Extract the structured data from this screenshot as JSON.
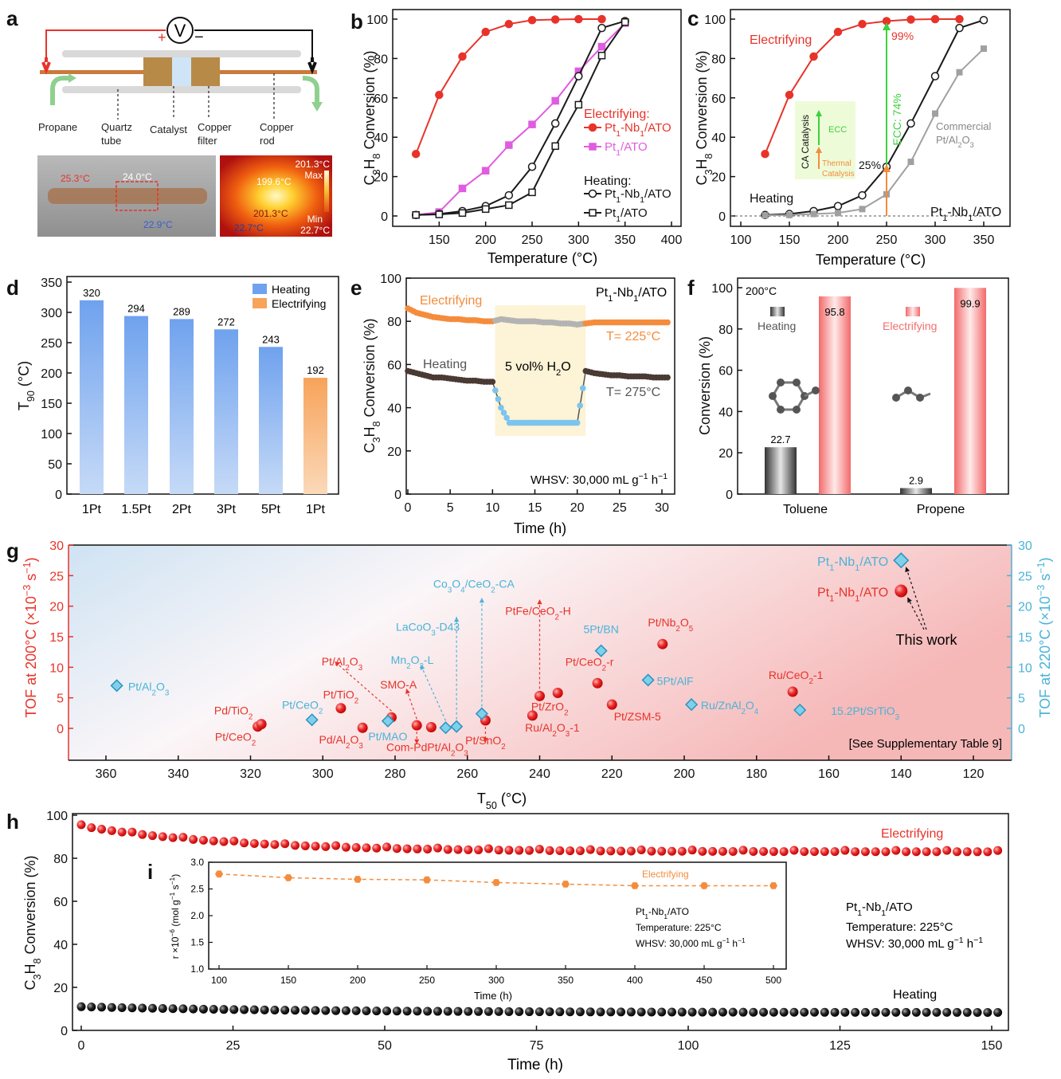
{
  "panel_labels": {
    "a": "a",
    "b": "b",
    "c": "c",
    "d": "d",
    "e": "e",
    "f": "f",
    "g": "g",
    "h": "h",
    "i": "i"
  },
  "colors": {
    "red": "#e8332a",
    "pink": "#e05ce0",
    "black": "#1a1a1a",
    "blue": "#4ab3d8",
    "orange": "#f58c3c",
    "grey": "#a0a0a0",
    "green": "#3cd23c"
  },
  "panel_a": {
    "voltmeter": "V",
    "plus": "+",
    "minus": "−",
    "labels": {
      "propane": "Propane",
      "quartz": "Quartz",
      "quartz2": "tube",
      "catalyst": "Catalyst",
      "copper_filter": "Copper",
      "copper_filter2": "filter",
      "copper_rod": "Copper",
      "copper_rod2": "rod"
    },
    "photo": {
      "t1": "25.3°C",
      "t2": "24.0°C",
      "t3": "22.9°C"
    },
    "thermal": {
      "max_val": "201.3°C",
      "max": "Max",
      "center": "199.6°C",
      "center2": "201.3°C",
      "min": "Min",
      "min_val": "22.7°C",
      "cold": "22.7°C"
    }
  },
  "chart_data": [
    {
      "id": "b",
      "type": "line",
      "xlabel": "Temperature (°C)",
      "ylabel": "C3H8 Conversion (%)",
      "xlim": [
        100,
        400
      ],
      "ylim": [
        0,
        100
      ],
      "xticks": [
        "150",
        "200",
        "250",
        "300",
        "350",
        "400"
      ],
      "yticks": [
        "0",
        "20",
        "40",
        "60",
        "80",
        "100"
      ],
      "legend_electrifying": "Electrifying:",
      "legend_heating": "Heating:",
      "series": [
        {
          "name": "Pt1-Nb1/ATO",
          "mode": "Electrifying",
          "x": [
            125,
            150,
            175,
            200,
            225,
            250,
            275,
            300,
            325
          ],
          "y": [
            31.5,
            61.5,
            81,
            93.5,
            97.5,
            99.5,
            99.8,
            100,
            100
          ]
        },
        {
          "name": "Pt1/ATO",
          "mode": "Electrifying",
          "x": [
            125,
            150,
            175,
            200,
            225,
            250,
            275,
            300,
            325,
            350
          ],
          "y": [
            0.5,
            2,
            14,
            23,
            36,
            46.5,
            58.5,
            73.5,
            86,
            98
          ]
        },
        {
          "name": "Pt1-Nb1/ATO",
          "mode": "Heating",
          "x": [
            125,
            150,
            175,
            200,
            225,
            250,
            275,
            300,
            325,
            350
          ],
          "y": [
            0.5,
            1,
            2.5,
            5,
            10.5,
            25,
            47,
            71,
            95.5,
            99
          ]
        },
        {
          "name": "Pt1/ATO",
          "mode": "Heating",
          "x": [
            125,
            150,
            175,
            200,
            225,
            250,
            275,
            300,
            325,
            350
          ],
          "y": [
            0.5,
            0.8,
            1.5,
            3.5,
            5.5,
            12,
            35.5,
            56.5,
            81.5,
            98.5
          ]
        }
      ]
    },
    {
      "id": "c",
      "type": "line",
      "xlabel": "Temperature (°C)",
      "ylabel": "C3H8 Conversion (%)",
      "xlim": [
        100,
        350
      ],
      "ylim": [
        0,
        100
      ],
      "xticks": [
        "100",
        "150",
        "200",
        "250",
        "300",
        "350"
      ],
      "yticks": [
        "0",
        "20",
        "40",
        "60",
        "80",
        "100"
      ],
      "series": [
        {
          "name": "Electrifying",
          "x": [
            125,
            150,
            175,
            200,
            225,
            250,
            275,
            300,
            325
          ],
          "y": [
            31.5,
            61.5,
            81,
            93.5,
            97.5,
            99,
            99.8,
            100,
            100
          ]
        },
        {
          "name": "Heating",
          "x": [
            125,
            150,
            175,
            200,
            225,
            250,
            275,
            300,
            325,
            350
          ],
          "y": [
            0.5,
            1,
            2.5,
            5,
            10.5,
            25,
            47,
            71,
            95.5,
            99.5
          ]
        },
        {
          "name": "Commercial Pt/Al2O3",
          "x": [
            125,
            150,
            175,
            200,
            225,
            250,
            275,
            300,
            325,
            350
          ],
          "y": [
            0.3,
            0.5,
            1,
            1.5,
            3.5,
            11,
            27.5,
            52,
            73,
            85
          ]
        }
      ],
      "annotations": {
        "p99": "99%",
        "p25": "25%",
        "ecc": "ECC: 74%",
        "ca": "CA Catalysis",
        "ecc_small": "ECC",
        "thermal1": "Thermal",
        "thermal2": "Catalysis",
        "commercial1": "Commercial",
        "commercial2": "Pt/Al2O3",
        "corner": "Pt1-Nb1/ATO"
      }
    },
    {
      "id": "d",
      "type": "bar",
      "ylabel": "T90 (°C)",
      "ylim": [
        0,
        350
      ],
      "yticks": [
        "0",
        "50",
        "100",
        "150",
        "200",
        "250",
        "300",
        "350"
      ],
      "categories": [
        "1Pt",
        "1.5Pt",
        "2Pt",
        "3Pt",
        "5Pt",
        "1Pt"
      ],
      "values": [
        320,
        294,
        289,
        272,
        243,
        192
      ],
      "modes": [
        "Heating",
        "Heating",
        "Heating",
        "Heating",
        "Heating",
        "Electrifying"
      ],
      "legend": [
        "Heating",
        "Electrifying"
      ]
    },
    {
      "id": "e",
      "type": "line",
      "xlabel": "Time (h)",
      "ylabel": "C3H8 Conversion (%)",
      "xlim": [
        0,
        31
      ],
      "ylim": [
        0,
        100
      ],
      "xticks": [
        "0",
        "5",
        "10",
        "15",
        "20",
        "25",
        "30"
      ],
      "yticks": [
        "0",
        "20",
        "40",
        "60",
        "80",
        "100"
      ],
      "series": [
        {
          "name": "Electrifying",
          "x": [
            0,
            1,
            2,
            3,
            4,
            5,
            6,
            7,
            8,
            9,
            10,
            11,
            12,
            13,
            14,
            15,
            16,
            17,
            18,
            19,
            20,
            21,
            22,
            23,
            24,
            25,
            26,
            27,
            28,
            29,
            30,
            31
          ],
          "y": [
            86,
            84,
            83,
            82,
            81.5,
            81,
            81,
            80.5,
            80.5,
            80,
            80,
            81,
            80.5,
            80,
            80,
            80,
            79.5,
            79.5,
            79,
            79,
            78.5,
            79,
            79.5,
            79.5,
            79.5,
            79.5,
            79.5,
            79.5,
            79.5,
            79.5,
            79.5,
            79.5
          ]
        },
        {
          "name": "Heating",
          "x": [
            0,
            1,
            2,
            3,
            4,
            5,
            6,
            7,
            8,
            9,
            10,
            11,
            12,
            13,
            14,
            15,
            16,
            17,
            18,
            19,
            20,
            21,
            22,
            23,
            24,
            25,
            26,
            27,
            28,
            29,
            30,
            31
          ],
          "y": [
            57,
            56,
            55,
            54,
            54,
            53.5,
            53,
            52.5,
            52.5,
            52,
            52,
            40,
            33,
            33,
            33,
            33,
            33,
            33,
            33,
            33,
            33,
            57,
            56,
            55.5,
            55,
            55,
            54.5,
            54.5,
            54.5,
            54,
            54,
            54
          ]
        }
      ],
      "annotations": {
        "corner": "Pt1-Nb1/ATO",
        "electrifying": "Electrifying",
        "heating": "Heating",
        "water": "5 vol%  H2O",
        "t225": "T= 225°C",
        "t275": "T= 275°C",
        "whsv": "WHSV: 30,000 mL g−1 h−1"
      }
    },
    {
      "id": "f",
      "type": "bar",
      "ylabel": "Conversion (%)",
      "ylim": [
        0,
        100
      ],
      "yticks": [
        "0",
        "20",
        "40",
        "60",
        "80",
        "100"
      ],
      "categories": [
        "Toluene",
        "Propene"
      ],
      "series": [
        {
          "name": "Heating",
          "values": [
            22.7,
            2.9
          ]
        },
        {
          "name": "Electrifying",
          "values": [
            95.8,
            99.9
          ]
        }
      ],
      "annotations": {
        "temp": "200°C"
      }
    },
    {
      "id": "g",
      "type": "scatter",
      "xlabel": "T50 (°C)",
      "ylabel_left": "TOF at 200°C (×10−3 s−1)",
      "ylabel_right": "TOF at 220°C (×10−3 s−1)",
      "xlim": [
        370,
        110
      ],
      "ylim": [
        -4.5,
        30
      ],
      "xticks": [
        "360",
        "340",
        "320",
        "300",
        "280",
        "260",
        "240",
        "220",
        "200",
        "180",
        "160",
        "140",
        "120"
      ],
      "yticks": [
        "0",
        "5",
        "10",
        "15",
        "20",
        "25",
        "30"
      ],
      "red_points": [
        {
          "label": "Pt/CeO2",
          "x": 318,
          "y": 0.3
        },
        {
          "label": "Pd/TiO2",
          "x": 317,
          "y": 0.7
        },
        {
          "label": "Pt/TiO2",
          "x": 295,
          "y": 3.3
        },
        {
          "label": "Pd/Al2O3",
          "x": 289,
          "y": 0.1
        },
        {
          "label": "Pt/Al2O3",
          "x": 281,
          "y": 1.8
        },
        {
          "label": "SMO-A",
          "x": 274,
          "y": 0.5
        },
        {
          "label": "Com-PdPt/Al2O3",
          "x": 270,
          "y": 0.2
        },
        {
          "label": "Pt/SnO2",
          "x": 255,
          "y": 1.3
        },
        {
          "label": "Ru/Al2O3-1",
          "x": 242,
          "y": 2.1
        },
        {
          "label": "PtFe/CeO2-H",
          "x": 240,
          "y": 5.3
        },
        {
          "label": "Pt/ZrO2",
          "x": 235,
          "y": 5.8
        },
        {
          "label": "Pt/CeO2-r",
          "x": 224,
          "y": 7.4
        },
        {
          "label": "Pt/ZSM-5",
          "x": 220,
          "y": 3.9
        },
        {
          "label": "Pt/Nb2O5",
          "x": 206,
          "y": 13.8
        },
        {
          "label": "Ru/CeO2-1",
          "x": 170,
          "y": 6.0
        },
        {
          "label": "Pt1-Nb1/ATO",
          "x": 140,
          "y": 22.5
        }
      ],
      "blue_points": [
        {
          "label": "Pt/Al2O3",
          "x": 357,
          "y": 7
        },
        {
          "label": "Pt/CeO2",
          "x": 303,
          "y": 1.4
        },
        {
          "label": "Pt/MAO",
          "x": 282,
          "y": 1.2
        },
        {
          "label": "Mn2O3-L",
          "x": 266,
          "y": 0.1
        },
        {
          "label": "LaCoO3-D43",
          "x": 263,
          "y": 0.3
        },
        {
          "label": "Co3O4/CeO2-CA",
          "x": 256,
          "y": 2.4
        },
        {
          "label": "5Pt/BN",
          "x": 223,
          "y": 12.7
        },
        {
          "label": "5Pt/AlF",
          "x": 210,
          "y": 7.9
        },
        {
          "label": "Ru/ZnAl2O4",
          "x": 198,
          "y": 3.9
        },
        {
          "label": "15.2Pt/SrTiO3",
          "x": 168,
          "y": 3.0
        },
        {
          "label": "Pt1-Nb1/ATO",
          "x": 140,
          "y": 27.5
        }
      ],
      "annotations": {
        "this_work": "This work",
        "supp": "[See Supplementary Table 9]"
      }
    },
    {
      "id": "h",
      "type": "scatter",
      "xlabel": "Time (h)",
      "ylabel": "C3H8 Conversion (%)",
      "xlim": [
        -3,
        153
      ],
      "ylim": [
        0,
        100
      ],
      "xticks": [
        "0",
        "25",
        "50",
        "75",
        "100",
        "125",
        "150"
      ],
      "yticks": [
        "0",
        "20",
        "40",
        "60",
        "80",
        "100"
      ],
      "series": [
        {
          "name": "Electrifying",
          "start": 95,
          "end": 83
        },
        {
          "name": "Heating",
          "start": 11,
          "end": 8.3
        }
      ],
      "annotations": {
        "electrifying": "Electrifying",
        "heating": "Heating",
        "info1": "Pt1-Nb1/ATO",
        "info2": "Temperature: 225°C",
        "info3": "WHSV: 30,000 mL g−1 h−1"
      }
    },
    {
      "id": "i",
      "type": "line",
      "xlabel": "Time (h)",
      "ylabel": "r ×10−6 (mol g−1 s−1)",
      "xlim": [
        75,
        525
      ],
      "ylim": [
        1.0,
        3.0
      ],
      "xticks": [
        "100",
        "150",
        "200",
        "250",
        "300",
        "350",
        "400",
        "450",
        "500"
      ],
      "yticks": [
        "1.0",
        "1.5",
        "2.0",
        "2.5",
        "3.0"
      ],
      "series": [
        {
          "name": "Electrifying",
          "x": [
            100,
            150,
            200,
            250,
            300,
            350,
            400,
            450,
            500
          ],
          "y": [
            2.78,
            2.71,
            2.68,
            2.67,
            2.62,
            2.59,
            2.56,
            2.56,
            2.56
          ]
        }
      ],
      "annotations": {
        "info1": "Pt1-Nb1/ATO",
        "info2": "Temperature: 225°C",
        "info3": "WHSV: 30,000 mL g−1 h−1"
      }
    }
  ]
}
